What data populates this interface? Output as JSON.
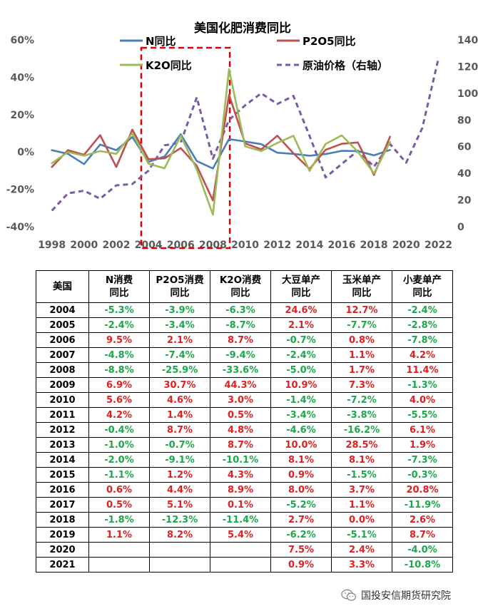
{
  "chart_data": {
    "type": "line",
    "title": "美国化肥消费同比",
    "x": [
      1998,
      1999,
      2000,
      2001,
      2002,
      2003,
      2004,
      2005,
      2006,
      2007,
      2008,
      2009,
      2010,
      2011,
      2012,
      2013,
      2014,
      2015,
      2016,
      2017,
      2018,
      2019,
      2020,
      2021,
      2022
    ],
    "x_ticks": [
      "1998",
      "2000",
      "2002",
      "2004",
      "2006",
      "2008",
      "2010",
      "2012",
      "2014",
      "2016",
      "2018",
      "2020",
      "2022"
    ],
    "y_left": {
      "min": -40,
      "max": 60,
      "ticks": [
        "-40%",
        "-20%",
        "0%",
        "20%",
        "40%",
        "60%"
      ]
    },
    "y_right": {
      "min": 0,
      "max": 140,
      "ticks": [
        "0",
        "20",
        "40",
        "60",
        "80",
        "100",
        "120",
        "140"
      ]
    },
    "series": [
      {
        "name": "N同比",
        "color": "#4a7ebb",
        "axis": "left",
        "dash": false,
        "values": [
          1.0,
          -1.0,
          -6.5,
          4.0,
          1.0,
          8.0,
          -5.3,
          -2.4,
          9.5,
          -4.8,
          -8.8,
          6.9,
          5.6,
          4.2,
          -0.4,
          -1.0,
          -2.0,
          -1.1,
          0.6,
          0.5,
          -1.8,
          1.1,
          null,
          null,
          null
        ]
      },
      {
        "name": "P2O5同比",
        "color": "#c0504d",
        "axis": "left",
        "dash": false,
        "values": [
          -8.0,
          1.0,
          -1.5,
          9.0,
          -8.0,
          12.0,
          -3.9,
          -3.4,
          2.1,
          -7.4,
          -25.9,
          30.7,
          4.6,
          1.4,
          8.7,
          -0.7,
          -9.1,
          1.2,
          4.4,
          5.1,
          -12.3,
          8.2,
          null,
          null,
          null
        ]
      },
      {
        "name": "K2O同比",
        "color": "#9bbb59",
        "axis": "left",
        "dash": false,
        "values": [
          -6.0,
          0.0,
          -2.0,
          0.5,
          -1.0,
          10.0,
          -6.3,
          -8.7,
          8.7,
          -9.4,
          -33.6,
          44.3,
          3.0,
          0.5,
          4.8,
          8.7,
          -10.1,
          4.3,
          8.9,
          0.1,
          -11.4,
          5.4,
          null,
          null,
          null
        ]
      },
      {
        "name": "原油价格（右轴）",
        "color": "#7a5ba8",
        "axis": "right",
        "dash": true,
        "values": [
          12,
          25,
          27,
          21,
          31,
          32,
          42,
          61,
          63,
          97,
          51,
          80,
          91,
          100,
          92,
          98,
          68,
          37,
          47,
          57,
          45,
          62,
          48,
          74,
          126
        ]
      }
    ],
    "annotation": "red dashed box 2004–2009"
  },
  "table": {
    "headers": [
      "美国",
      "N消费同比",
      "P2O5消费同比",
      "K2O消费同比",
      "大豆单产同比",
      "玉米单产同比",
      "小麦单产同比"
    ],
    "rows": [
      [
        "2004",
        "-5.3%",
        "-3.9%",
        "-6.3%",
        "24.6%",
        "12.7%",
        "-2.4%"
      ],
      [
        "2005",
        "-2.4%",
        "-3.4%",
        "-8.7%",
        "2.1%",
        "-7.7%",
        "-2.8%"
      ],
      [
        "2006",
        "9.5%",
        "2.1%",
        "8.7%",
        "-0.7%",
        "0.8%",
        "-7.8%"
      ],
      [
        "2007",
        "-4.8%",
        "-7.4%",
        "-9.4%",
        "-2.4%",
        "1.1%",
        "4.2%"
      ],
      [
        "2008",
        "-8.8%",
        "-25.9%",
        "-33.6%",
        "-5.0%",
        "1.7%",
        "11.4%"
      ],
      [
        "2009",
        "6.9%",
        "30.7%",
        "44.3%",
        "10.9%",
        "7.3%",
        "-1.3%"
      ],
      [
        "2010",
        "5.6%",
        "4.6%",
        "3.0%",
        "-1.4%",
        "-7.2%",
        "4.0%"
      ],
      [
        "2011",
        "4.2%",
        "1.4%",
        "0.5%",
        "-3.4%",
        "-3.8%",
        "-5.5%"
      ],
      [
        "2012",
        "-0.4%",
        "8.7%",
        "4.8%",
        "-4.6%",
        "-16.2%",
        "6.1%"
      ],
      [
        "2013",
        "-1.0%",
        "-0.7%",
        "8.7%",
        "10.0%",
        "28.5%",
        "1.9%"
      ],
      [
        "2014",
        "-2.0%",
        "-9.1%",
        "-10.1%",
        "8.1%",
        "8.1%",
        "-7.3%"
      ],
      [
        "2015",
        "-1.1%",
        "1.2%",
        "4.3%",
        "0.9%",
        "-1.5%",
        "-0.3%"
      ],
      [
        "2016",
        "0.6%",
        "4.4%",
        "8.9%",
        "8.0%",
        "3.7%",
        "20.8%"
      ],
      [
        "2017",
        "0.5%",
        "5.1%",
        "0.1%",
        "-5.2%",
        "1.1%",
        "-11.9%"
      ],
      [
        "2018",
        "-1.8%",
        "-12.3%",
        "-11.4%",
        "2.7%",
        "0.0%",
        "2.6%"
      ],
      [
        "2019",
        "1.1%",
        "8.2%",
        "5.4%",
        "-6.2%",
        "-5.1%",
        "8.7%"
      ],
      [
        "2020",
        "",
        "",
        "",
        "7.5%",
        "2.4%",
        "-4.0%"
      ],
      [
        "2021",
        "",
        "",
        "",
        "0.9%",
        "3.3%",
        "-10.8%"
      ]
    ],
    "colors": {
      "positive": "#e02020",
      "negative": "#1aa84a"
    }
  },
  "footer": {
    "label": "国投安信期货研究院",
    "icon": "wechat-icon"
  }
}
